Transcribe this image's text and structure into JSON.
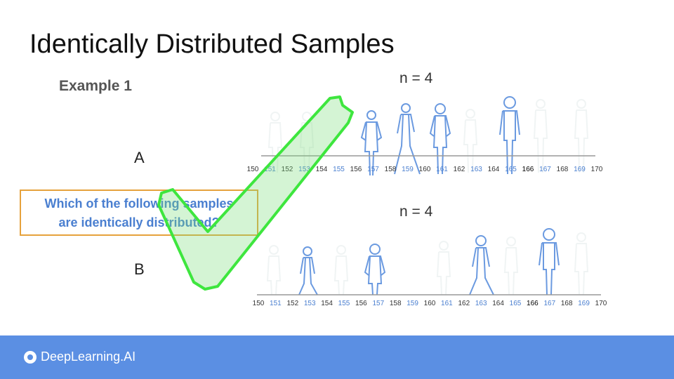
{
  "slide": {
    "title": "Identically Distributed Samples",
    "example_label": "Example 1",
    "question_line1": "Which of the following samples",
    "question_line2": "are identically distributed?"
  },
  "sample_a": {
    "label": "A",
    "n_label": "n = 4",
    "tick_labels": [
      "150",
      "151",
      "152",
      "153",
      "154",
      "155",
      "156",
      "157",
      "158",
      "159",
      "160",
      "161",
      "162",
      "163",
      "164",
      "165",
      "166",
      "167",
      "168",
      "169",
      "170"
    ]
  },
  "sample_b": {
    "label": "B",
    "n_label": "n = 4",
    "tick_labels": [
      "150",
      "151",
      "152",
      "153",
      "154",
      "155",
      "156",
      "157",
      "158",
      "159",
      "160",
      "161",
      "162",
      "163",
      "164",
      "165",
      "166",
      "167",
      "168",
      "169",
      "170"
    ]
  },
  "footer": {
    "brand": "DeepLearning.AI"
  },
  "colors": {
    "blue_tick": "#4a7fd0",
    "black_tick": "#333333",
    "figure": "#6b9ae0",
    "check_stroke": "#3ee63e",
    "footer_bg": "#5b8fe3"
  }
}
